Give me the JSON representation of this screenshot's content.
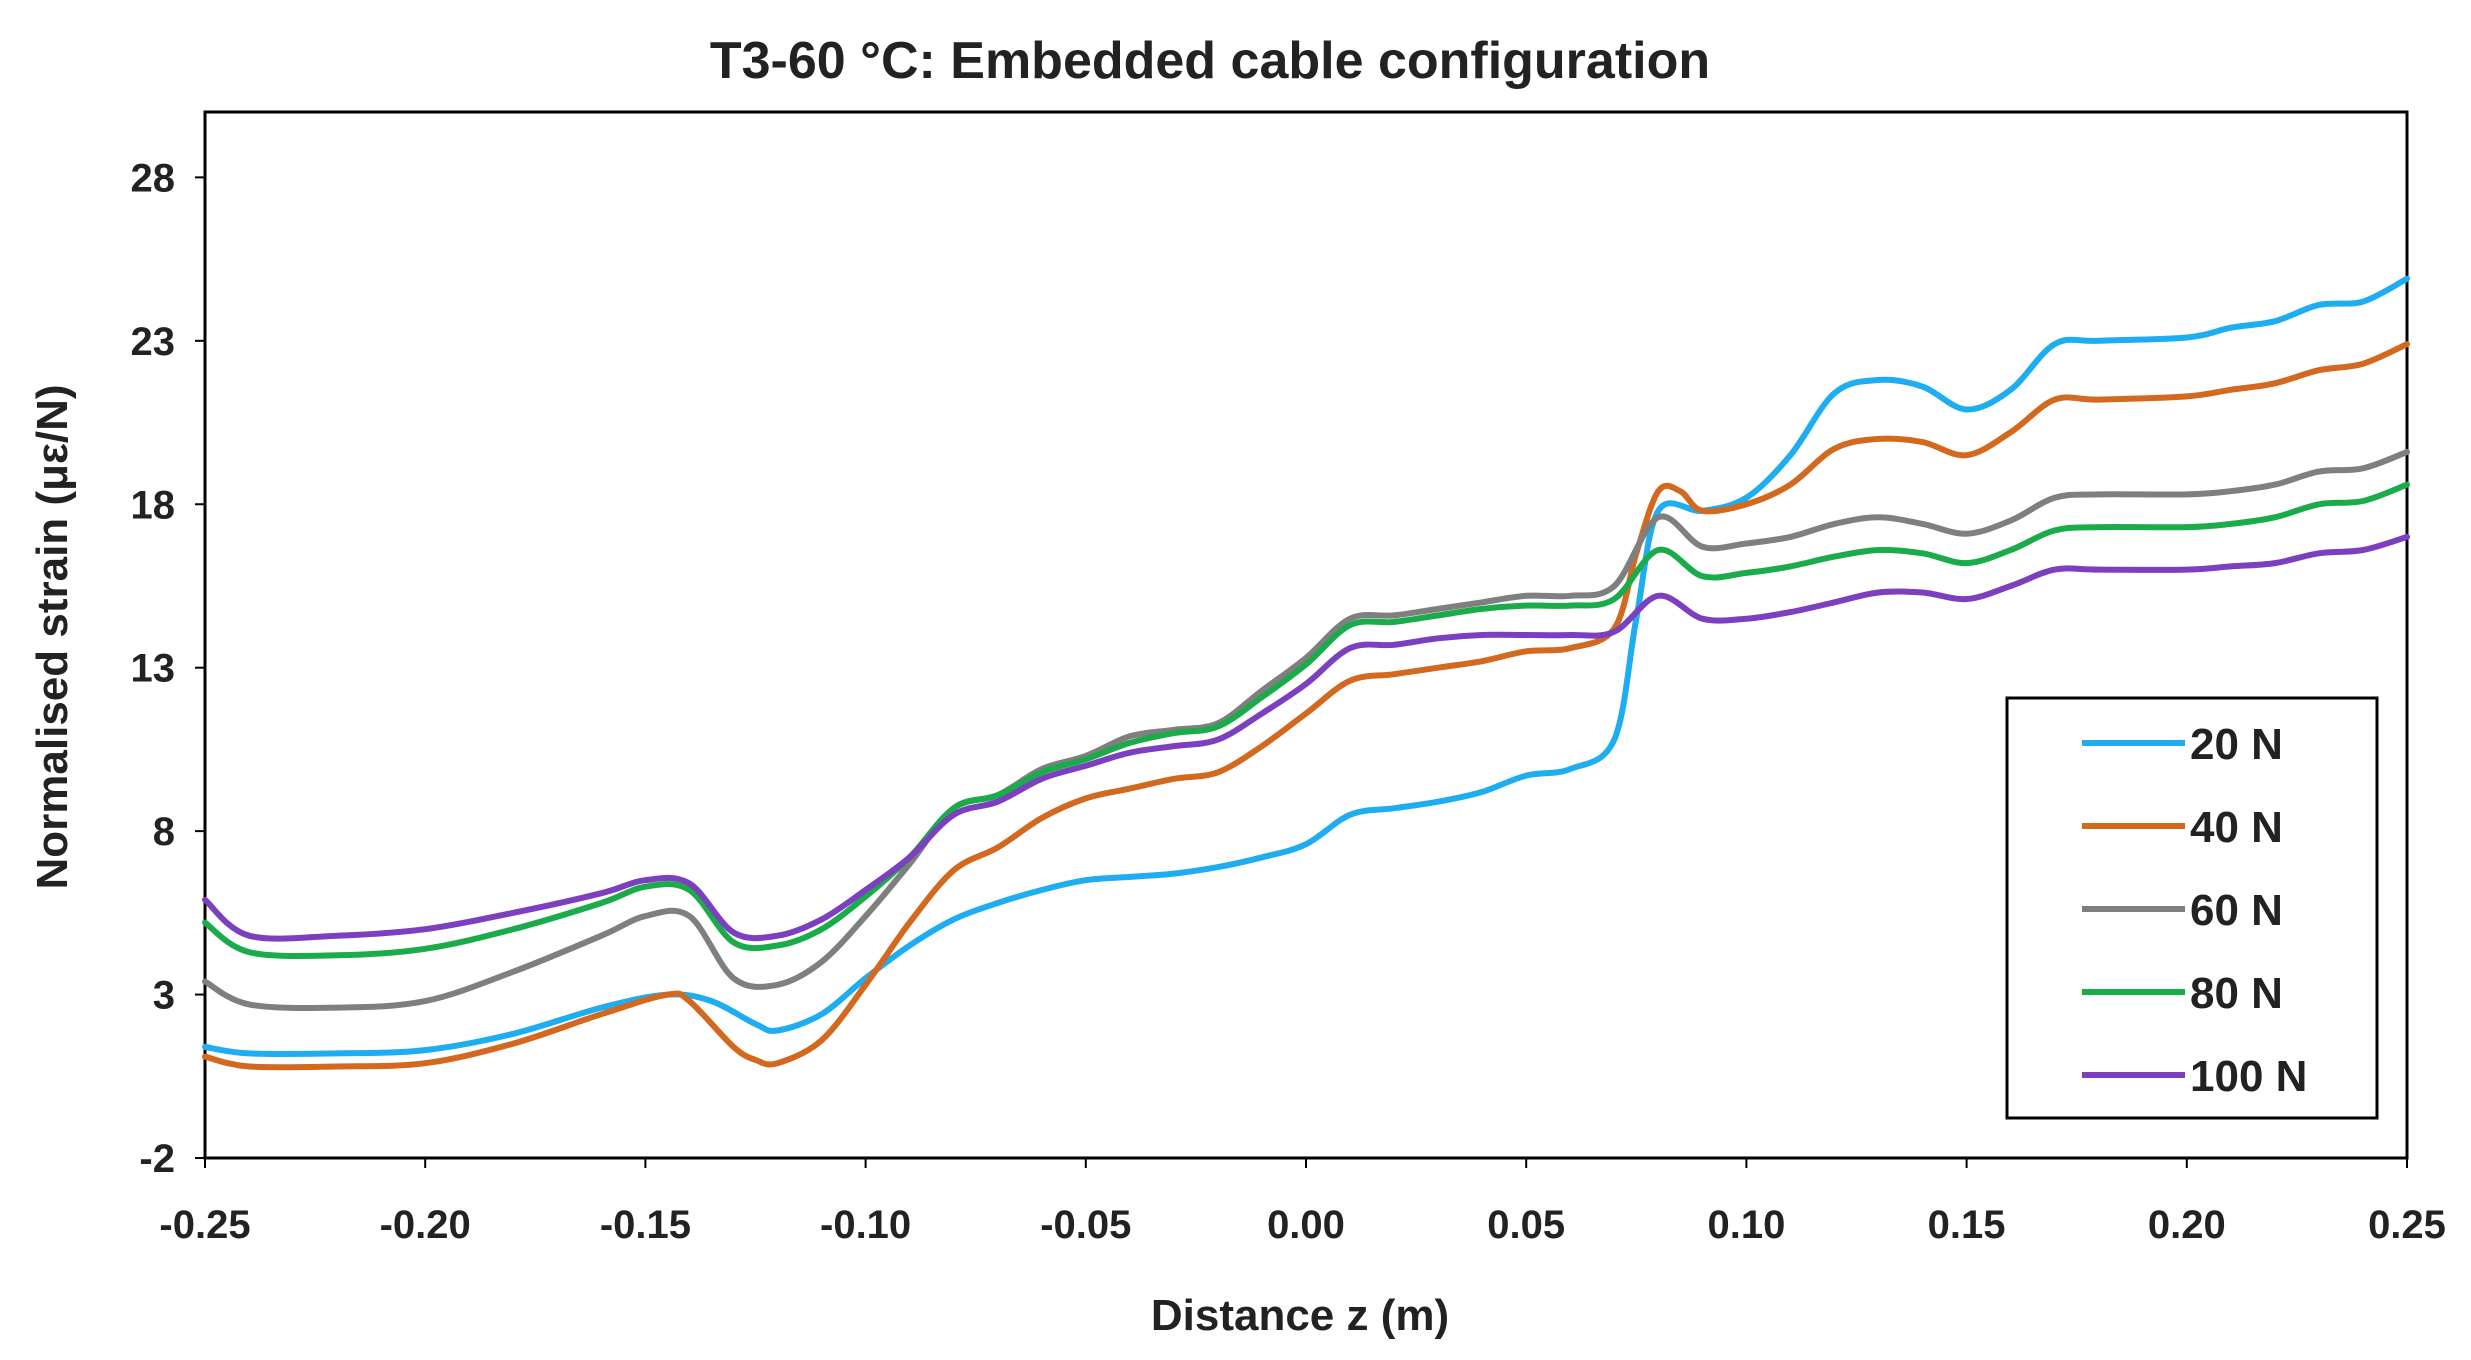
{
  "chart_data": {
    "type": "line",
    "title": "T3-60 °C: Embedded cable configuration",
    "xlabel": "Distance z (m)",
    "ylabel": "Normalised strain (με/N)",
    "xlim": [
      -0.25,
      0.25
    ],
    "ylim": [
      -2,
      30
    ],
    "x_ticks": [
      -0.25,
      -0.2,
      -0.15,
      -0.1,
      -0.05,
      0.0,
      0.05,
      0.1,
      0.15,
      0.2,
      0.25
    ],
    "x_tick_labels": [
      "-0.25",
      "-0.20",
      "-0.15",
      "-0.10",
      "-0.05",
      "0.00",
      "0.05",
      "0.10",
      "0.15",
      "0.20",
      "0.25"
    ],
    "y_ticks": [
      -2,
      3,
      8,
      13,
      18,
      23,
      28
    ],
    "y_tick_labels": [
      "-2",
      "3",
      "8",
      "13",
      "18",
      "23",
      "28"
    ],
    "grid": false,
    "legend_position": "bottom-right",
    "series": [
      {
        "name": "20 N",
        "color": "#1EADF0",
        "points": [
          [
            -0.25,
            1.4
          ],
          [
            -0.24,
            1.2
          ],
          [
            -0.22,
            1.2
          ],
          [
            -0.2,
            1.3
          ],
          [
            -0.18,
            1.8
          ],
          [
            -0.16,
            2.6
          ],
          [
            -0.145,
            3.0
          ],
          [
            -0.135,
            2.8
          ],
          [
            -0.125,
            2.1
          ],
          [
            -0.12,
            1.9
          ],
          [
            -0.11,
            2.4
          ],
          [
            -0.1,
            3.5
          ],
          [
            -0.09,
            4.5
          ],
          [
            -0.08,
            5.3
          ],
          [
            -0.07,
            5.8
          ],
          [
            -0.06,
            6.2
          ],
          [
            -0.05,
            6.5
          ],
          [
            -0.04,
            6.6
          ],
          [
            -0.03,
            6.7
          ],
          [
            -0.02,
            6.9
          ],
          [
            -0.01,
            7.2
          ],
          [
            0.0,
            7.6
          ],
          [
            0.01,
            8.5
          ],
          [
            0.02,
            8.7
          ],
          [
            0.03,
            8.9
          ],
          [
            0.04,
            9.2
          ],
          [
            0.05,
            9.7
          ],
          [
            0.06,
            9.9
          ],
          [
            0.07,
            10.8
          ],
          [
            0.075,
            14.5
          ],
          [
            0.08,
            17.8
          ],
          [
            0.09,
            17.8
          ],
          [
            0.1,
            18.2
          ],
          [
            0.11,
            19.5
          ],
          [
            0.12,
            21.4
          ],
          [
            0.13,
            21.8
          ],
          [
            0.14,
            21.6
          ],
          [
            0.15,
            20.9
          ],
          [
            0.16,
            21.5
          ],
          [
            0.17,
            22.9
          ],
          [
            0.18,
            23.0
          ],
          [
            0.2,
            23.1
          ],
          [
            0.21,
            23.4
          ],
          [
            0.22,
            23.6
          ],
          [
            0.23,
            24.1
          ],
          [
            0.24,
            24.2
          ],
          [
            0.25,
            24.9
          ]
        ]
      },
      {
        "name": "40 N",
        "color": "#D2691E",
        "points": [
          [
            -0.25,
            1.1
          ],
          [
            -0.24,
            0.8
          ],
          [
            -0.22,
            0.8
          ],
          [
            -0.2,
            0.9
          ],
          [
            -0.18,
            1.5
          ],
          [
            -0.16,
            2.4
          ],
          [
            -0.145,
            3.0
          ],
          [
            -0.14,
            2.8
          ],
          [
            -0.13,
            1.4
          ],
          [
            -0.125,
            1.0
          ],
          [
            -0.12,
            0.9
          ],
          [
            -0.11,
            1.6
          ],
          [
            -0.1,
            3.3
          ],
          [
            -0.09,
            5.2
          ],
          [
            -0.08,
            6.8
          ],
          [
            -0.07,
            7.5
          ],
          [
            -0.06,
            8.4
          ],
          [
            -0.05,
            9.0
          ],
          [
            -0.04,
            9.3
          ],
          [
            -0.03,
            9.6
          ],
          [
            -0.02,
            9.8
          ],
          [
            -0.01,
            10.6
          ],
          [
            0.0,
            11.6
          ],
          [
            0.01,
            12.6
          ],
          [
            0.02,
            12.8
          ],
          [
            0.03,
            13.0
          ],
          [
            0.04,
            13.2
          ],
          [
            0.05,
            13.5
          ],
          [
            0.06,
            13.6
          ],
          [
            0.07,
            14.2
          ],
          [
            0.075,
            16.5
          ],
          [
            0.08,
            18.4
          ],
          [
            0.085,
            18.4
          ],
          [
            0.09,
            17.8
          ],
          [
            0.1,
            18.0
          ],
          [
            0.11,
            18.6
          ],
          [
            0.12,
            19.7
          ],
          [
            0.13,
            20.0
          ],
          [
            0.14,
            19.9
          ],
          [
            0.15,
            19.5
          ],
          [
            0.16,
            20.2
          ],
          [
            0.17,
            21.2
          ],
          [
            0.18,
            21.2
          ],
          [
            0.2,
            21.3
          ],
          [
            0.21,
            21.5
          ],
          [
            0.22,
            21.7
          ],
          [
            0.23,
            22.1
          ],
          [
            0.24,
            22.3
          ],
          [
            0.25,
            22.9
          ]
        ]
      },
      {
        "name": "60 N",
        "color": "#7F7F7F",
        "points": [
          [
            -0.25,
            3.4
          ],
          [
            -0.24,
            2.7
          ],
          [
            -0.22,
            2.6
          ],
          [
            -0.2,
            2.8
          ],
          [
            -0.18,
            3.7
          ],
          [
            -0.16,
            4.8
          ],
          [
            -0.15,
            5.4
          ],
          [
            -0.14,
            5.4
          ],
          [
            -0.13,
            3.5
          ],
          [
            -0.12,
            3.3
          ],
          [
            -0.11,
            4.0
          ],
          [
            -0.1,
            5.4
          ],
          [
            -0.09,
            7.0
          ],
          [
            -0.08,
            8.7
          ],
          [
            -0.07,
            9.1
          ],
          [
            -0.06,
            9.9
          ],
          [
            -0.05,
            10.3
          ],
          [
            -0.04,
            10.9
          ],
          [
            -0.03,
            11.1
          ],
          [
            -0.02,
            11.3
          ],
          [
            -0.01,
            12.3
          ],
          [
            0.0,
            13.3
          ],
          [
            0.01,
            14.5
          ],
          [
            0.02,
            14.6
          ],
          [
            0.03,
            14.8
          ],
          [
            0.04,
            15.0
          ],
          [
            0.05,
            15.2
          ],
          [
            0.06,
            15.2
          ],
          [
            0.07,
            15.5
          ],
          [
            0.08,
            17.6
          ],
          [
            0.09,
            16.7
          ],
          [
            0.1,
            16.8
          ],
          [
            0.11,
            17.0
          ],
          [
            0.12,
            17.4
          ],
          [
            0.13,
            17.6
          ],
          [
            0.14,
            17.4
          ],
          [
            0.15,
            17.1
          ],
          [
            0.16,
            17.5
          ],
          [
            0.17,
            18.2
          ],
          [
            0.18,
            18.3
          ],
          [
            0.2,
            18.3
          ],
          [
            0.21,
            18.4
          ],
          [
            0.22,
            18.6
          ],
          [
            0.23,
            19.0
          ],
          [
            0.24,
            19.1
          ],
          [
            0.25,
            19.6
          ]
        ]
      },
      {
        "name": "80 N",
        "color": "#1AAB4A",
        "points": [
          [
            -0.25,
            5.2
          ],
          [
            -0.24,
            4.3
          ],
          [
            -0.22,
            4.2
          ],
          [
            -0.2,
            4.4
          ],
          [
            -0.18,
            5.0
          ],
          [
            -0.16,
            5.8
          ],
          [
            -0.15,
            6.3
          ],
          [
            -0.14,
            6.2
          ],
          [
            -0.13,
            4.6
          ],
          [
            -0.12,
            4.5
          ],
          [
            -0.11,
            5.0
          ],
          [
            -0.1,
            6.0
          ],
          [
            -0.09,
            7.2
          ],
          [
            -0.08,
            8.7
          ],
          [
            -0.07,
            9.1
          ],
          [
            -0.06,
            9.8
          ],
          [
            -0.05,
            10.2
          ],
          [
            -0.04,
            10.7
          ],
          [
            -0.03,
            11.0
          ],
          [
            -0.02,
            11.2
          ],
          [
            -0.01,
            12.1
          ],
          [
            0.0,
            13.1
          ],
          [
            0.01,
            14.3
          ],
          [
            0.02,
            14.4
          ],
          [
            0.03,
            14.6
          ],
          [
            0.04,
            14.8
          ],
          [
            0.05,
            14.9
          ],
          [
            0.06,
            14.9
          ],
          [
            0.07,
            15.1
          ],
          [
            0.08,
            16.6
          ],
          [
            0.09,
            15.8
          ],
          [
            0.1,
            15.9
          ],
          [
            0.11,
            16.1
          ],
          [
            0.12,
            16.4
          ],
          [
            0.13,
            16.6
          ],
          [
            0.14,
            16.5
          ],
          [
            0.15,
            16.2
          ],
          [
            0.16,
            16.6
          ],
          [
            0.17,
            17.2
          ],
          [
            0.18,
            17.3
          ],
          [
            0.2,
            17.3
          ],
          [
            0.21,
            17.4
          ],
          [
            0.22,
            17.6
          ],
          [
            0.23,
            18.0
          ],
          [
            0.24,
            18.1
          ],
          [
            0.25,
            18.6
          ]
        ]
      },
      {
        "name": "100 N",
        "color": "#7B3FBF",
        "points": [
          [
            -0.25,
            5.9
          ],
          [
            -0.24,
            4.8
          ],
          [
            -0.22,
            4.8
          ],
          [
            -0.2,
            5.0
          ],
          [
            -0.18,
            5.5
          ],
          [
            -0.16,
            6.1
          ],
          [
            -0.15,
            6.5
          ],
          [
            -0.14,
            6.4
          ],
          [
            -0.13,
            4.9
          ],
          [
            -0.12,
            4.8
          ],
          [
            -0.11,
            5.3
          ],
          [
            -0.1,
            6.2
          ],
          [
            -0.09,
            7.2
          ],
          [
            -0.08,
            8.5
          ],
          [
            -0.07,
            8.9
          ],
          [
            -0.06,
            9.6
          ],
          [
            -0.05,
            10.0
          ],
          [
            -0.04,
            10.4
          ],
          [
            -0.03,
            10.6
          ],
          [
            -0.02,
            10.8
          ],
          [
            -0.01,
            11.6
          ],
          [
            0.0,
            12.5
          ],
          [
            0.01,
            13.6
          ],
          [
            0.02,
            13.7
          ],
          [
            0.03,
            13.9
          ],
          [
            0.04,
            14.0
          ],
          [
            0.05,
            14.0
          ],
          [
            0.06,
            14.0
          ],
          [
            0.07,
            14.1
          ],
          [
            0.08,
            15.2
          ],
          [
            0.09,
            14.5
          ],
          [
            0.1,
            14.5
          ],
          [
            0.11,
            14.7
          ],
          [
            0.12,
            15.0
          ],
          [
            0.13,
            15.3
          ],
          [
            0.14,
            15.3
          ],
          [
            0.15,
            15.1
          ],
          [
            0.16,
            15.5
          ],
          [
            0.17,
            16.0
          ],
          [
            0.18,
            16.0
          ],
          [
            0.2,
            16.0
          ],
          [
            0.21,
            16.1
          ],
          [
            0.22,
            16.2
          ],
          [
            0.23,
            16.5
          ],
          [
            0.24,
            16.6
          ],
          [
            0.25,
            17.0
          ]
        ]
      }
    ]
  }
}
